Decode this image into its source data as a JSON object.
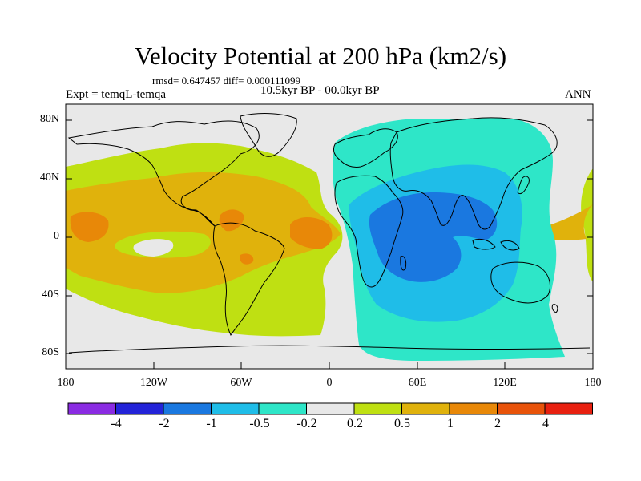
{
  "title": "Velocity Potential at 200 hPa (km2/s)",
  "stats": "rmsd= 0.647457 diff= 0.000111099",
  "experiment": "Expt = temqL-temqa",
  "period": "10.5kyr BP - 00.0kyr BP",
  "season": "ANN",
  "y_ticks": [
    "80N",
    "40N",
    "0",
    "40S",
    "80S"
  ],
  "x_ticks": [
    "180",
    "120W",
    "60W",
    "0",
    "60E",
    "120E",
    "180"
  ],
  "colorbar": {
    "colors": [
      "#8a2be2",
      "#2323d8",
      "#1a78e0",
      "#1fbde8",
      "#2ee6c8",
      "#e8e8e8",
      "#bfe012",
      "#e0b20c",
      "#e88808",
      "#e8530a",
      "#e82010"
    ],
    "labels": [
      "-4",
      "-2",
      "-1",
      "-0.5",
      "-0.2",
      "0.2",
      "0.5",
      "1",
      "2",
      "4"
    ]
  },
  "colors": {
    "background": "#e8e8e8",
    "yellow_green": "#bfe012",
    "orange": "#e0b20c",
    "dark_orange": "#e88808",
    "teal": "#2ee6c8",
    "light_blue": "#1fbde8",
    "blue": "#1a78e0",
    "red_orange": "#e8530a"
  }
}
